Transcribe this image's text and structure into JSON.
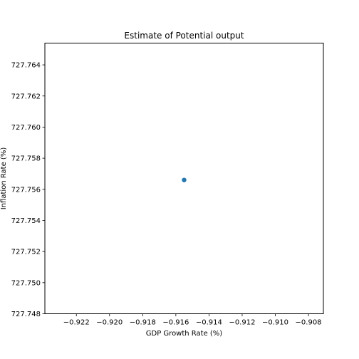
{
  "chart_data": {
    "type": "scatter",
    "title": "Estimate of Potential output",
    "xlabel": "GDP Growth Rate (%)",
    "ylabel": "Inflation Rate (%)",
    "xlim": [
      -0.9239,
      -0.9071
    ],
    "ylim": [
      727.748,
      727.7654
    ],
    "x_ticks": [
      "−0.922",
      "−0.920",
      "−0.918",
      "−0.916",
      "−0.914",
      "−0.912",
      "−0.910",
      "−0.908"
    ],
    "x_tick_values": [
      -0.922,
      -0.92,
      -0.918,
      -0.916,
      -0.914,
      -0.912,
      -0.91,
      -0.908
    ],
    "y_ticks": [
      "727.748",
      "727.750",
      "727.752",
      "727.754",
      "727.756",
      "727.758",
      "727.760",
      "727.762",
      "727.764"
    ],
    "y_tick_values": [
      727.748,
      727.75,
      727.752,
      727.754,
      727.756,
      727.758,
      727.76,
      727.762,
      727.764
    ],
    "points": [
      {
        "x": -0.9155,
        "y": 727.7566
      }
    ],
    "series_color": "#1f77b4",
    "grid": false
  }
}
